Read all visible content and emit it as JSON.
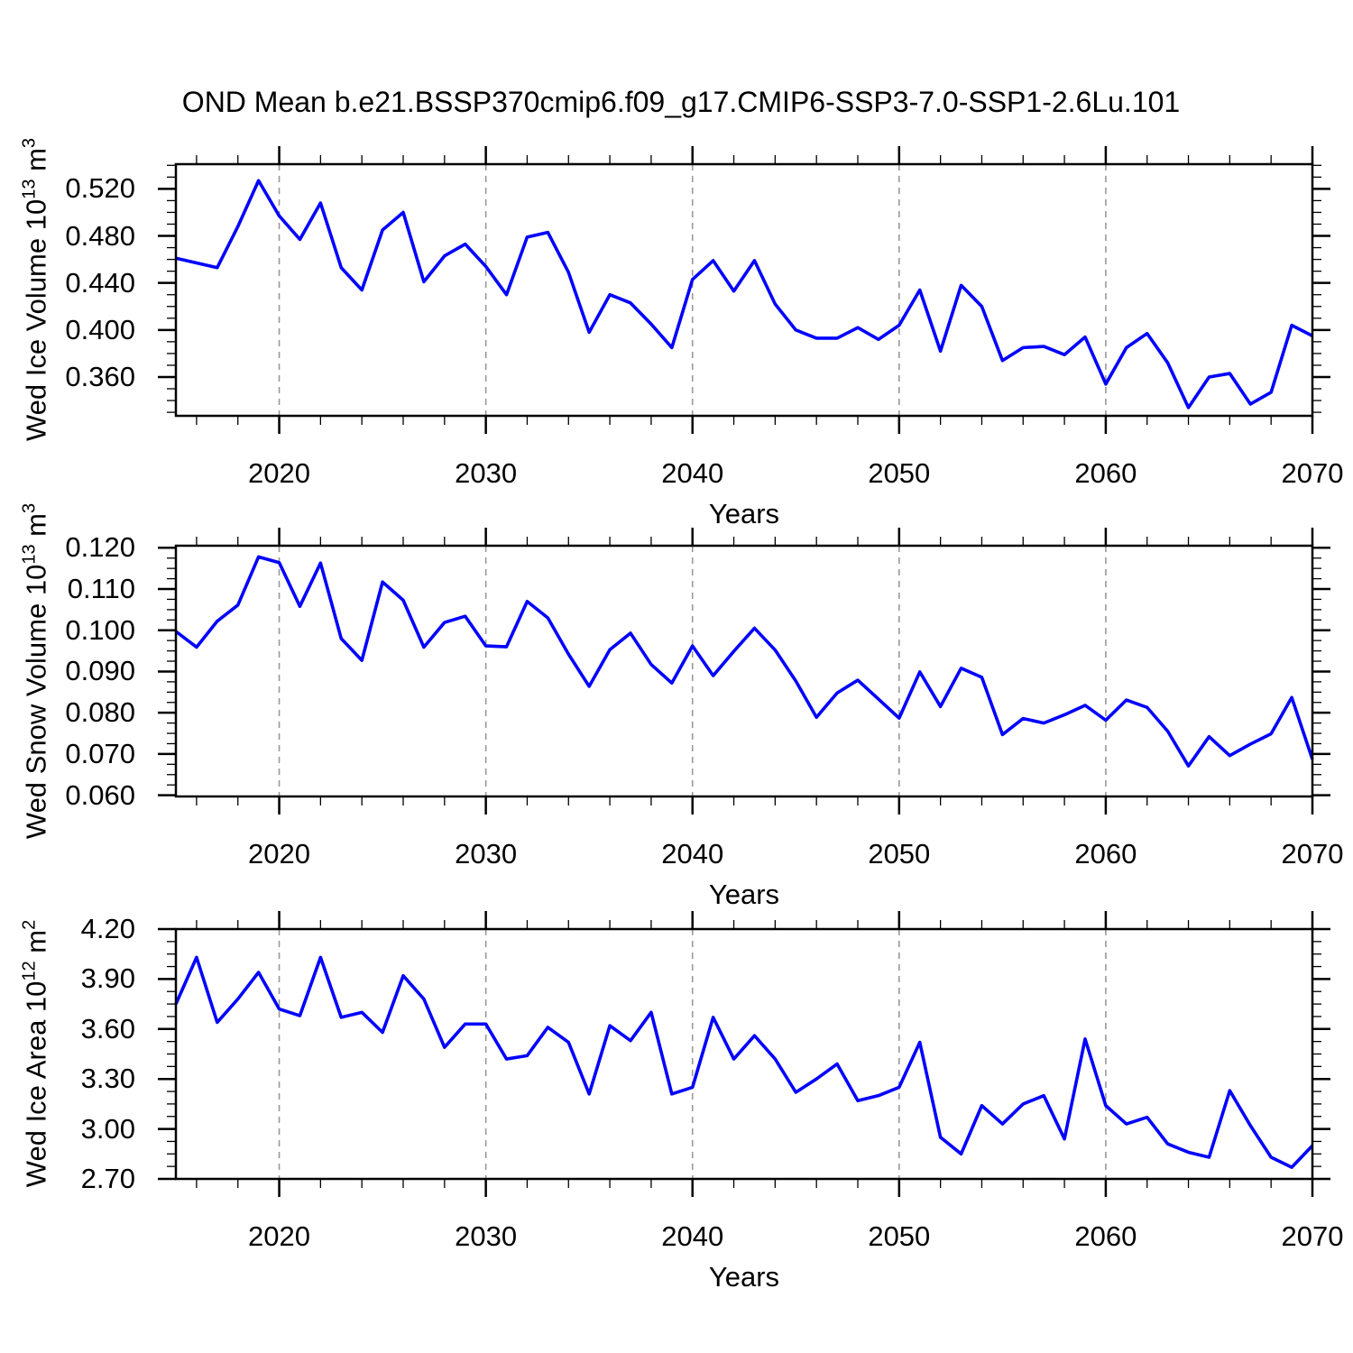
{
  "page": {
    "title": "OND Mean b.e21.BSSP370cmip6.f09_g17.CMIP6-SSP3-7.0-SSP1-2.6Lu.101",
    "background": "#ffffff"
  },
  "style": {
    "line_color": "#0000ff",
    "axis_color": "#000000",
    "grid_color": "#999999",
    "text_color": "#000000"
  },
  "chart_data": [
    {
      "type": "line",
      "title": "",
      "xlabel": "Years",
      "ylabel": {
        "base": "Wed Ice Volume 10",
        "sup1": "13",
        "mid": " m",
        "sup2": "3"
      },
      "xlim": [
        2015,
        2070
      ],
      "ylim": [
        0.327,
        0.541
      ],
      "grid": "vertical-dashed",
      "legend": "none",
      "gridlines": [
        2020,
        2030,
        2040,
        2050,
        2060
      ],
      "xticks": [
        2020,
        2030,
        2040,
        2050,
        2060,
        2070
      ],
      "xtick_labels": [
        "2020",
        "2030",
        "2040",
        "2050",
        "2060",
        "2070"
      ],
      "xminor_step": 2,
      "yticks": [
        0.36,
        0.4,
        0.44,
        0.48,
        0.52
      ],
      "ytick_labels": [
        "0.360",
        "0.400",
        "0.440",
        "0.480",
        "0.520"
      ],
      "yminor_step": 0.01,
      "x": [
        2015,
        2016,
        2017,
        2018,
        2019,
        2020,
        2021,
        2022,
        2023,
        2024,
        2025,
        2026,
        2027,
        2028,
        2029,
        2030,
        2031,
        2032,
        2033,
        2034,
        2035,
        2036,
        2037,
        2038,
        2039,
        2040,
        2041,
        2042,
        2043,
        2044,
        2045,
        2046,
        2047,
        2048,
        2049,
        2050,
        2051,
        2052,
        2053,
        2054,
        2055,
        2056,
        2057,
        2058,
        2059,
        2060,
        2061,
        2062,
        2063,
        2064,
        2065,
        2066,
        2067,
        2068,
        2069,
        2070
      ],
      "values": [
        0.461,
        0.457,
        0.453,
        0.488,
        0.527,
        0.497,
        0.477,
        0.508,
        0.453,
        0.434,
        0.485,
        0.5,
        0.441,
        0.463,
        0.473,
        0.454,
        0.43,
        0.479,
        0.483,
        0.449,
        0.398,
        0.43,
        0.423,
        0.405,
        0.385,
        0.443,
        0.459,
        0.433,
        0.459,
        0.422,
        0.4,
        0.393,
        0.393,
        0.402,
        0.392,
        0.404,
        0.434,
        0.382,
        0.438,
        0.42,
        0.374,
        0.385,
        0.386,
        0.379,
        0.394,
        0.354,
        0.385,
        0.397,
        0.372,
        0.334,
        0.36,
        0.363,
        0.337,
        0.347,
        0.404,
        0.395
      ]
    },
    {
      "type": "line",
      "title": "",
      "xlabel": "Years",
      "ylabel": {
        "base": "Wed Snow Volume 10",
        "sup1": "13",
        "mid": " m",
        "sup2": "3"
      },
      "xlim": [
        2015,
        2070
      ],
      "ylim": [
        0.0597,
        0.1205
      ],
      "grid": "vertical-dashed",
      "legend": "none",
      "gridlines": [
        2020,
        2030,
        2040,
        2050,
        2060
      ],
      "xticks": [
        2020,
        2030,
        2040,
        2050,
        2060,
        2070
      ],
      "xtick_labels": [
        "2020",
        "2030",
        "2040",
        "2050",
        "2060",
        "2070"
      ],
      "xminor_step": 2,
      "yticks": [
        0.06,
        0.07,
        0.08,
        0.09,
        0.1,
        0.11,
        0.12
      ],
      "ytick_labels": [
        "0.060",
        "0.070",
        "0.080",
        "0.090",
        "0.100",
        "0.110",
        "0.120"
      ],
      "yminor_step": 0.0025,
      "x": [
        2015,
        2016,
        2017,
        2018,
        2019,
        2020,
        2021,
        2022,
        2023,
        2024,
        2025,
        2026,
        2027,
        2028,
        2029,
        2030,
        2031,
        2032,
        2033,
        2034,
        2035,
        2036,
        2037,
        2038,
        2039,
        2040,
        2041,
        2042,
        2043,
        2044,
        2045,
        2046,
        2047,
        2048,
        2049,
        2050,
        2051,
        2052,
        2053,
        2054,
        2055,
        2056,
        2057,
        2058,
        2059,
        2060,
        2061,
        2062,
        2063,
        2064,
        2065,
        2066,
        2067,
        2068,
        2069,
        2070
      ],
      "values": [
        0.0997,
        0.0959,
        0.1022,
        0.1061,
        0.1178,
        0.1164,
        0.1058,
        0.1163,
        0.098,
        0.0927,
        0.1117,
        0.1073,
        0.0959,
        0.1019,
        0.1034,
        0.0962,
        0.096,
        0.107,
        0.103,
        0.0942,
        0.0864,
        0.0953,
        0.0993,
        0.0917,
        0.0872,
        0.0962,
        0.089,
        0.0949,
        0.1005,
        0.0952,
        0.0877,
        0.0789,
        0.0848,
        0.0879,
        0.0833,
        0.0787,
        0.0899,
        0.0815,
        0.0908,
        0.0886,
        0.0747,
        0.0786,
        0.0775,
        0.0795,
        0.0818,
        0.0782,
        0.0831,
        0.0813,
        0.0755,
        0.0671,
        0.0742,
        0.0696,
        0.0724,
        0.0749,
        0.0837,
        0.0687
      ]
    },
    {
      "type": "line",
      "title": "",
      "xlabel": "Years",
      "ylabel": {
        "base": "Wed Ice Area 10",
        "sup1": "12",
        "mid": " m",
        "sup2": "2"
      },
      "xlim": [
        2015,
        2070
      ],
      "ylim": [
        2.7,
        4.2
      ],
      "grid": "vertical-dashed",
      "legend": "none",
      "gridlines": [
        2020,
        2030,
        2040,
        2050,
        2060
      ],
      "xticks": [
        2020,
        2030,
        2040,
        2050,
        2060,
        2070
      ],
      "xtick_labels": [
        "2020",
        "2030",
        "2040",
        "2050",
        "2060",
        "2070"
      ],
      "xminor_step": 2,
      "yticks": [
        2.7,
        3.0,
        3.3,
        3.6,
        3.9,
        4.2
      ],
      "ytick_labels": [
        "2.70",
        "3.00",
        "3.30",
        "3.60",
        "3.90",
        "4.20"
      ],
      "yminor_step": 0.075,
      "x": [
        2015,
        2016,
        2017,
        2018,
        2019,
        2020,
        2021,
        2022,
        2023,
        2024,
        2025,
        2026,
        2027,
        2028,
        2029,
        2030,
        2031,
        2032,
        2033,
        2034,
        2035,
        2036,
        2037,
        2038,
        2039,
        2040,
        2041,
        2042,
        2043,
        2044,
        2045,
        2046,
        2047,
        2048,
        2049,
        2050,
        2051,
        2052,
        2053,
        2054,
        2055,
        2056,
        2057,
        2058,
        2059,
        2060,
        2061,
        2062,
        2063,
        2064,
        2065,
        2066,
        2067,
        2068,
        2069,
        2070
      ],
      "values": [
        3.75,
        4.03,
        3.64,
        3.78,
        3.94,
        3.72,
        3.68,
        4.03,
        3.67,
        3.7,
        3.58,
        3.92,
        3.78,
        3.49,
        3.63,
        3.63,
        3.42,
        3.44,
        3.61,
        3.52,
        3.21,
        3.62,
        3.53,
        3.7,
        3.21,
        3.25,
        3.67,
        3.42,
        3.56,
        3.42,
        3.22,
        3.3,
        3.39,
        3.17,
        3.2,
        3.25,
        3.52,
        2.95,
        2.85,
        3.14,
        3.03,
        3.15,
        3.2,
        2.94,
        3.54,
        3.14,
        3.03,
        3.07,
        2.91,
        2.86,
        2.83,
        3.23,
        3.02,
        2.83,
        2.77,
        2.9
      ]
    }
  ]
}
